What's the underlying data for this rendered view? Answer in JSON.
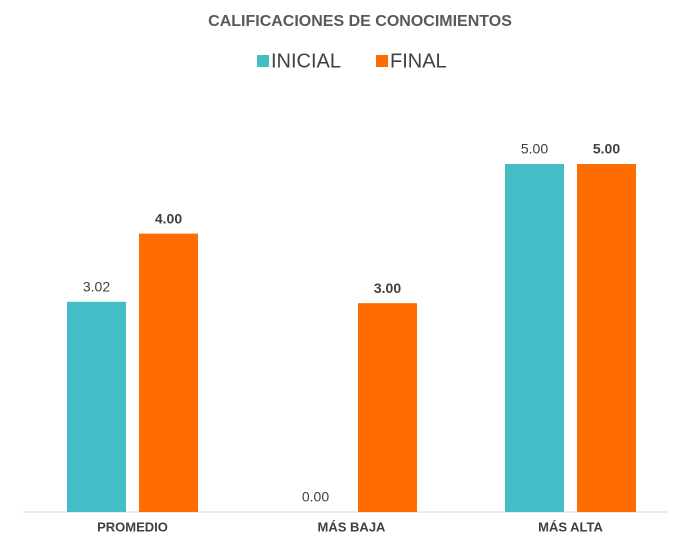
{
  "chart_data": {
    "type": "bar",
    "title": "CALIFICACIONES DE CONOCIMIENTOS",
    "categories": [
      "PROMEDIO",
      "MÁS BAJA",
      "MÁS ALTA"
    ],
    "series": [
      {
        "name": "INICIAL",
        "color": "#45bdc6",
        "values": [
          3.02,
          0,
          5
        ],
        "value_labels": [
          "3.02",
          "0.00",
          "5.00"
        ]
      },
      {
        "name": "FINAL",
        "color": "#ff6d00",
        "values": [
          4,
          3,
          5
        ],
        "value_labels": [
          "4.00",
          "3.00",
          "5.00"
        ]
      }
    ],
    "ylim": [
      0,
      5
    ]
  }
}
